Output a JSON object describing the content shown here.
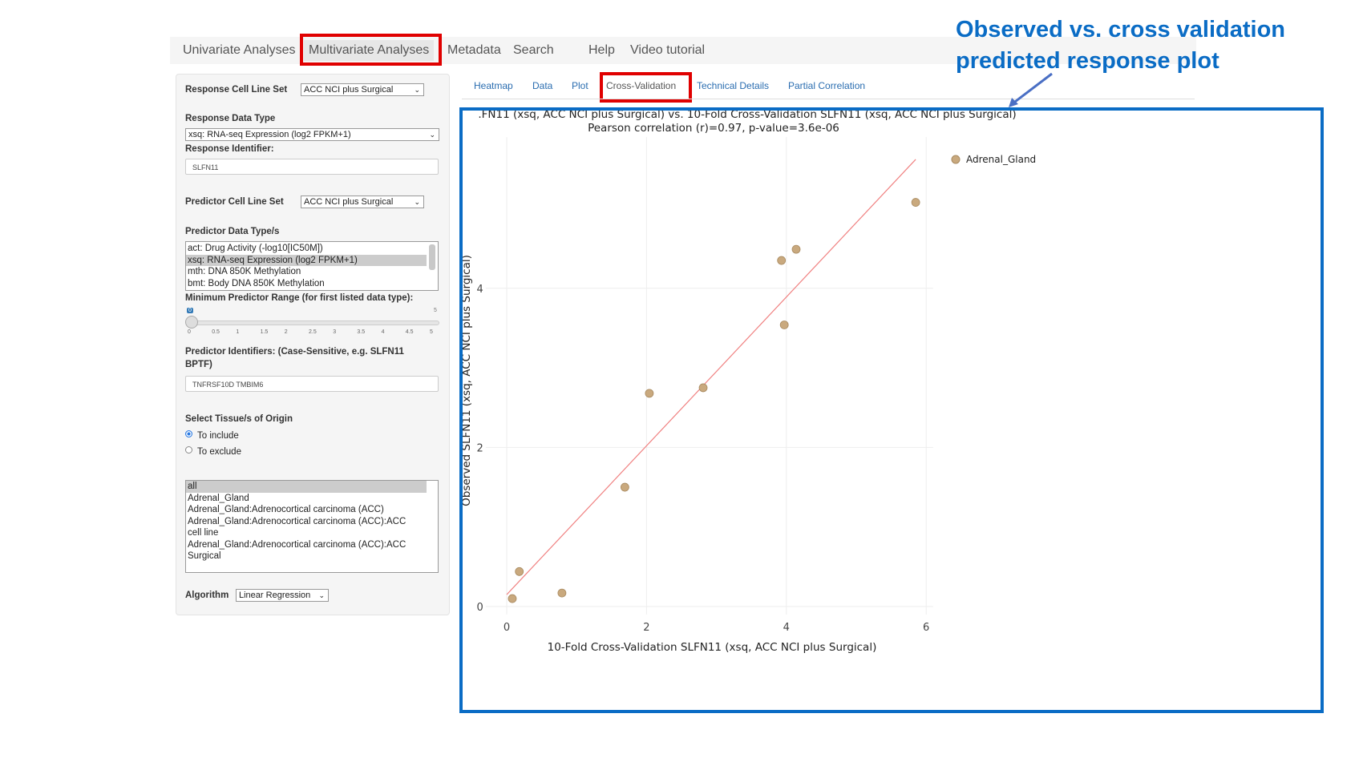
{
  "nav": {
    "items": [
      "Univariate Analyses",
      "Multivariate Analyses",
      "Metadata",
      "Search",
      "Help",
      "Video tutorial"
    ],
    "active": "Multivariate Analyses"
  },
  "left_panel": {
    "response_cell_line_set_label": "Response Cell Line Set",
    "response_cell_line_set_value": "ACC NCI plus Surgical",
    "response_data_type_label": "Response Data Type",
    "response_data_type_value": "xsq: RNA-seq Expression (log2 FPKM+1)",
    "response_identifier_label": "Response Identifier:",
    "response_identifier_value": "SLFN11",
    "predictor_cell_line_set_label": "Predictor Cell Line Set",
    "predictor_cell_line_set_value": "ACC NCI plus Surgical",
    "predictor_data_types_label": "Predictor Data Type/s",
    "predictor_data_types": [
      "act: Drug Activity (-log10[IC50M])",
      "xsq: RNA-seq Expression (log2 FPKM+1)",
      "mth: DNA 850K Methylation",
      "bmt: Body DNA 850K Methylation"
    ],
    "predictor_data_types_selected": 1,
    "min_range_label": "Minimum Predictor Range (for first listed data type):",
    "slider": {
      "value": 0,
      "min_label": "0",
      "max_label": "5",
      "ticks": [
        "0",
        "0.5",
        "1",
        "1.5",
        "2",
        "2.5",
        "3",
        "3.5",
        "4",
        "4.5",
        "5"
      ]
    },
    "predictor_ids_label_1": "Predictor Identifiers: (Case-Sensitive, e.g. SLFN11",
    "predictor_ids_label_2": "BPTF)",
    "predictor_ids_value": "TNFRSF10D TMBIM6",
    "tissue_label": "Select Tissue/s of Origin",
    "radio_include": "To include",
    "radio_exclude": "To exclude",
    "radio_selected": "To include",
    "tissues": [
      "all",
      "Adrenal_Gland",
      "Adrenal_Gland:Adrenocortical carcinoma (ACC)",
      "Adrenal_Gland:Adrenocortical carcinoma (ACC):ACC",
      "cell line",
      "Adrenal_Gland:Adrenocortical carcinoma (ACC):ACC",
      "Surgical"
    ],
    "algorithm_label": "Algorithm",
    "algorithm_value": "Linear Regression"
  },
  "subtabs": {
    "items": [
      "Heatmap",
      "Data",
      "Plot",
      "Cross-Validation",
      "Technical Details",
      "Partial Correlation"
    ],
    "active": "Cross-Validation"
  },
  "annotation": {
    "line1": "Observed vs. cross validation",
    "line2": "predicted response plot",
    "color": "#0a6cc5"
  },
  "highlight_color": "#e00000",
  "chart_data": {
    "type": "scatter",
    "title": ".FN11 (xsq, ACC NCI plus Surgical) vs. 10-Fold Cross-Validation SLFN11 (xsq, ACC NCI plus Surgical)",
    "subtitle": "Pearson correlation (r)=0.97, p-value=3.6e-06",
    "xlabel": "10-Fold Cross-Validation SLFN11 (xsq, ACC NCI plus Surgical)",
    "ylabel": "Observed SLFN11 (xsq, ACC NCI plus Surgical)",
    "xlim": [
      -0.3,
      6.1
    ],
    "ylim": [
      -0.1,
      5.9
    ],
    "xticks": [
      0,
      2,
      4,
      6
    ],
    "yticks": [
      0,
      2,
      4
    ],
    "grid": true,
    "legend_position": "top-right",
    "series": [
      {
        "name": "Adrenal_Gland",
        "color": "#c9a97e",
        "x": [
          0.08,
          0.18,
          0.79,
          1.69,
          2.04,
          2.81,
          3.93,
          4.14,
          3.97,
          5.85
        ],
        "y": [
          0.1,
          0.44,
          0.17,
          1.5,
          2.68,
          2.75,
          4.35,
          4.49,
          3.54,
          5.08
        ]
      }
    ],
    "fit_line": {
      "x": [
        0.0,
        5.85
      ],
      "y": [
        0.15,
        5.62
      ],
      "color": "#f08080"
    }
  }
}
